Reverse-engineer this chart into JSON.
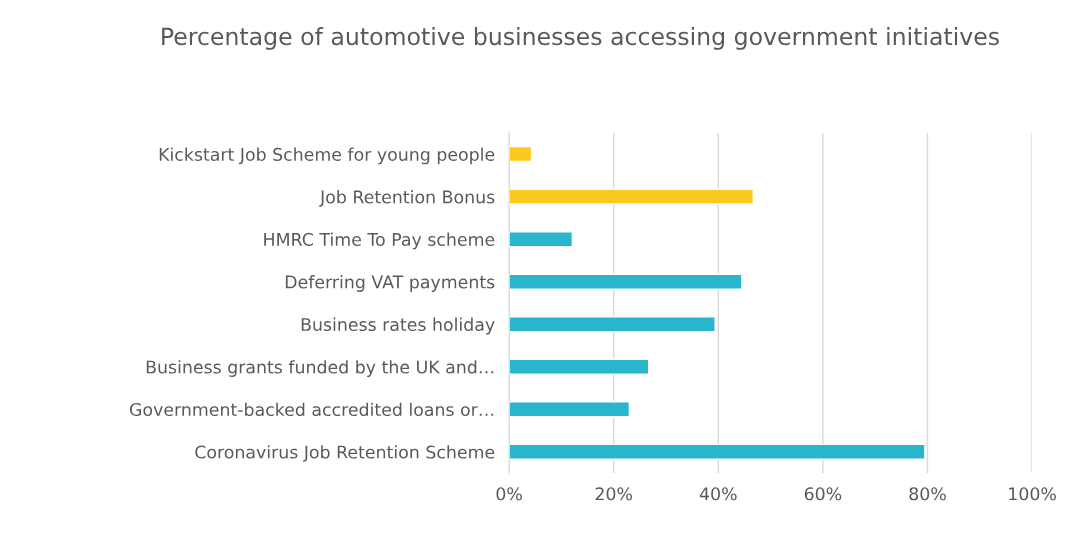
{
  "chart_data": {
    "type": "bar",
    "orientation": "horizontal",
    "title": "Percentage of automotive businesses accessing government initiatives",
    "categories": [
      "Kickstart Job Scheme for young people",
      "Job Retention Bonus",
      "HMRC Time To Pay scheme",
      "Deferring VAT payments",
      "Business rates holiday",
      "Business grants funded by the UK and…",
      "Government-backed accredited loans or…",
      "Coronavirus Job Retention Scheme"
    ],
    "values": [
      4.3,
      46.7,
      12.1,
      44.5,
      39.4,
      26.7,
      23,
      79.5
    ],
    "colors": [
      "#fdc81f",
      "#fdc81f",
      "#29b6cc",
      "#29b6cc",
      "#29b6cc",
      "#29b6cc",
      "#29b6cc",
      "#29b6cc"
    ],
    "xlim": [
      0,
      100
    ],
    "xticks": [
      {
        "value": 0,
        "label": "0%"
      },
      {
        "value": 20,
        "label": "20%"
      },
      {
        "value": 40,
        "label": "40%"
      },
      {
        "value": 60,
        "label": "60%"
      },
      {
        "value": 80,
        "label": "80%"
      },
      {
        "value": 100,
        "label": "100%"
      }
    ],
    "grid": "x",
    "legend": false
  }
}
